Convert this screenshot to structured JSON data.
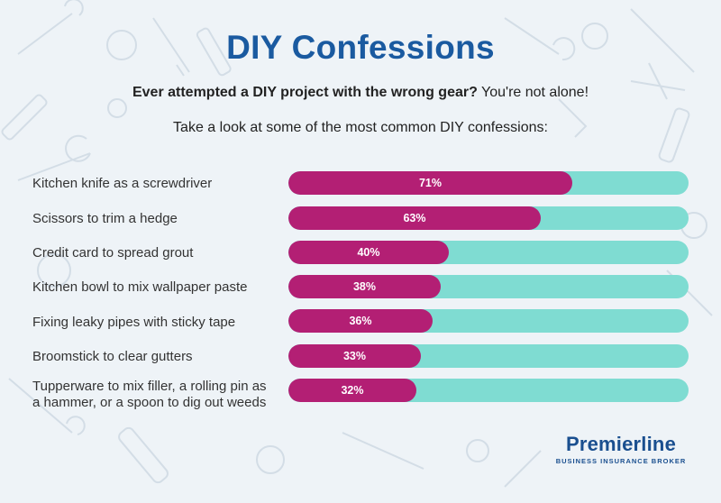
{
  "header": {
    "title": "DIY Confessions",
    "subtitle_bold": "Ever attempted a DIY project with the wrong gear?",
    "subtitle_rest": " You're not alone!",
    "intro": "Take a look at some of the most common DIY confessions:"
  },
  "colors": {
    "title": "#1a5aa0",
    "bar_fill": "#b31f74",
    "bar_track": "#7fdcd2",
    "background": "#eef3f7"
  },
  "chart_data": {
    "type": "bar",
    "orientation": "horizontal",
    "categories": [
      "Kitchen knife as a screwdriver",
      "Scissors to trim a hedge",
      "Credit card to spread grout",
      "Kitchen bowl to mix wallpaper paste",
      "Fixing leaky pipes with sticky tape",
      "Broomstick to clear gutters",
      "Tupperware to mix filler, a rolling pin as a hammer, or a spoon to dig out weeds"
    ],
    "values": [
      71,
      63,
      40,
      38,
      36,
      33,
      32
    ],
    "value_labels": [
      "71%",
      "63%",
      "40%",
      "38%",
      "36%",
      "33%",
      "32%"
    ],
    "unit": "%",
    "xlim": [
      0,
      100
    ],
    "grid": false
  },
  "logo": {
    "name": "Premierline",
    "tagline": "BUSINESS INSURANCE BROKER"
  }
}
